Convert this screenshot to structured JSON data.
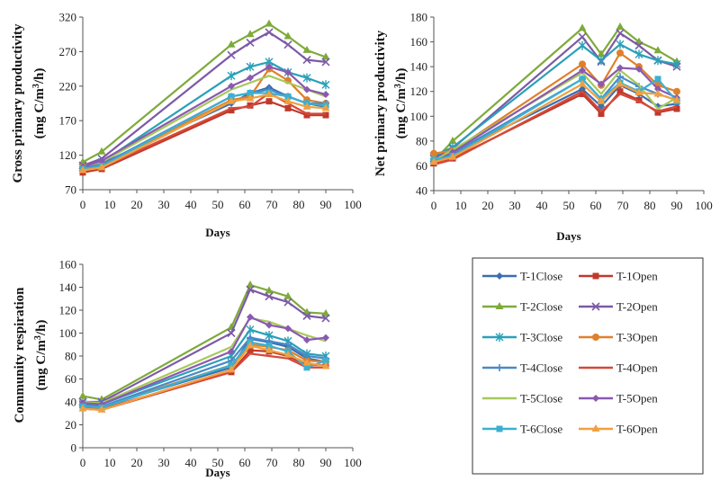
{
  "chart_data": [
    {
      "type": "line",
      "title": "",
      "xlabel": "Days",
      "ylabel": "Gross primary productivity (mg C/m3/h)",
      "ylabel_line1": "Gross primary productivity",
      "ylabel_line2": "(mg C/m",
      "ylabel_sup": "3",
      "ylabel_tail": "/h)",
      "xlim": [
        0,
        100
      ],
      "ylim": [
        70,
        320
      ],
      "xticks": [
        0,
        10,
        20,
        30,
        40,
        50,
        60,
        70,
        80,
        90,
        100
      ],
      "yticks": [
        70,
        120,
        170,
        220,
        270,
        320
      ],
      "x": [
        0,
        7,
        55,
        62,
        69,
        76,
        83,
        90
      ],
      "series": [
        {
          "name": "T-1Close",
          "values": [
            100,
            108,
            195,
            210,
            218,
            205,
            195,
            190
          ]
        },
        {
          "name": "T-1Open",
          "values": [
            95,
            100,
            185,
            192,
            198,
            188,
            178,
            178
          ]
        },
        {
          "name": "T-2Close",
          "values": [
            110,
            125,
            280,
            295,
            310,
            292,
            272,
            262
          ]
        },
        {
          "name": "T-2Open",
          "values": [
            105,
            115,
            265,
            283,
            298,
            280,
            258,
            255
          ]
        },
        {
          "name": "T-3Close",
          "values": [
            102,
            110,
            235,
            248,
            255,
            240,
            232,
            222
          ]
        },
        {
          "name": "T-3Open",
          "values": [
            103,
            106,
            200,
            205,
            245,
            228,
            200,
            195
          ]
        },
        {
          "name": "T-4Close",
          "values": [
            102,
            106,
            205,
            210,
            215,
            205,
            195,
            195
          ]
        },
        {
          "name": "T-4Open",
          "values": [
            98,
            102,
            188,
            190,
            210,
            195,
            180,
            180
          ]
        },
        {
          "name": "T-5Close",
          "values": [
            104,
            110,
            215,
            225,
            235,
            225,
            215,
            205
          ]
        },
        {
          "name": "T-5Open",
          "values": [
            103,
            112,
            220,
            232,
            248,
            240,
            215,
            208
          ]
        },
        {
          "name": "T-6Close",
          "values": [
            100,
            104,
            205,
            210,
            210,
            205,
            195,
            192
          ]
        },
        {
          "name": "T-6Open",
          "values": [
            98,
            102,
            198,
            202,
            208,
            198,
            190,
            188
          ]
        }
      ]
    },
    {
      "type": "line",
      "title": "",
      "xlabel": "Days",
      "ylabel": "Net primary productivity (mg C/m3/h)",
      "ylabel_line1": "Net primary productivity",
      "ylabel_line2": "(mg C/m",
      "ylabel_sup": "3",
      "ylabel_tail": "/h)",
      "xlim": [
        0,
        100
      ],
      "ylim": [
        40,
        180
      ],
      "xticks": [
        0,
        10,
        20,
        30,
        40,
        50,
        60,
        70,
        80,
        90,
        100
      ],
      "yticks": [
        40,
        60,
        80,
        100,
        120,
        140,
        160,
        180
      ],
      "x": [
        0,
        7,
        55,
        62,
        69,
        76,
        83,
        90
      ],
      "series": [
        {
          "name": "T-1Close",
          "values": [
            65,
            70,
            122,
            108,
            125,
            118,
            108,
            110
          ]
        },
        {
          "name": "T-1Open",
          "values": [
            62,
            66,
            118,
            102,
            120,
            113,
            103,
            106
          ]
        },
        {
          "name": "T-2Close",
          "values": [
            64,
            80,
            171,
            150,
            172,
            160,
            153,
            144
          ]
        },
        {
          "name": "T-2Open",
          "values": [
            66,
            74,
            164,
            144,
            167,
            157,
            145,
            140
          ]
        },
        {
          "name": "T-3Close",
          "values": [
            68,
            75,
            157,
            145,
            158,
            150,
            145,
            142
          ]
        },
        {
          "name": "T-3Open",
          "values": [
            70,
            72,
            142,
            125,
            151,
            140,
            125,
            120
          ]
        },
        {
          "name": "T-4Close",
          "values": [
            64,
            70,
            130,
            114,
            132,
            124,
            118,
            113
          ]
        },
        {
          "name": "T-4Open",
          "values": [
            61,
            65,
            120,
            104,
            118,
            112,
            104,
            108
          ]
        },
        {
          "name": "T-5Close",
          "values": [
            64,
            73,
            135,
            118,
            137,
            125,
            106,
            115
          ]
        },
        {
          "name": "T-5Open",
          "values": [
            63,
            71,
            137,
            126,
            139,
            138,
            122,
            115
          ]
        },
        {
          "name": "T-6Close",
          "values": [
            65,
            68,
            130,
            114,
            127,
            120,
            130,
            112
          ]
        },
        {
          "name": "T-6Open",
          "values": [
            63,
            67,
            126,
            112,
            126,
            119,
            118,
            113
          ]
        }
      ]
    },
    {
      "type": "line",
      "title": "",
      "xlabel": "Days",
      "ylabel": "Community respiration (mg C/m3/h)",
      "ylabel_line1": "Community respiration",
      "ylabel_line2": "(mg C/m",
      "ylabel_sup": "3",
      "ylabel_tail": "/h)",
      "xlim": [
        0,
        100
      ],
      "ylim": [
        0,
        160
      ],
      "xticks": [
        0,
        10,
        20,
        30,
        40,
        50,
        60,
        70,
        80,
        90,
        100
      ],
      "yticks": [
        0,
        20,
        40,
        60,
        80,
        100,
        120,
        140,
        160
      ],
      "x": [
        0,
        7,
        55,
        62,
        69,
        76,
        83,
        90
      ],
      "series": [
        {
          "name": "T-1Close",
          "values": [
            38,
            36,
            70,
            95,
            92,
            88,
            78,
            75
          ]
        },
        {
          "name": "T-1Open",
          "values": [
            35,
            34,
            66,
            85,
            84,
            80,
            72,
            72
          ]
        },
        {
          "name": "T-2Close",
          "values": [
            45,
            42,
            105,
            142,
            137,
            132,
            118,
            117
          ]
        },
        {
          "name": "T-2Open",
          "values": [
            40,
            40,
            100,
            138,
            132,
            127,
            115,
            113
          ]
        },
        {
          "name": "T-3Close",
          "values": [
            38,
            38,
            80,
            103,
            98,
            93,
            82,
            80
          ]
        },
        {
          "name": "T-3Open",
          "values": [
            36,
            36,
            72,
            90,
            88,
            85,
            76,
            75
          ]
        },
        {
          "name": "T-4Close",
          "values": [
            37,
            36,
            76,
            96,
            93,
            90,
            80,
            78
          ]
        },
        {
          "name": "T-4Open",
          "values": [
            34,
            33,
            66,
            82,
            80,
            78,
            70,
            70
          ]
        },
        {
          "name": "T-5Close",
          "values": [
            40,
            39,
            88,
            113,
            110,
            104,
            98,
            93
          ]
        },
        {
          "name": "T-5Open",
          "values": [
            39,
            38,
            84,
            114,
            107,
            104,
            94,
            96
          ]
        },
        {
          "name": "T-6Close",
          "values": [
            36,
            35,
            72,
            92,
            89,
            84,
            70,
            76
          ]
        },
        {
          "name": "T-6Open",
          "values": [
            34,
            33,
            68,
            89,
            85,
            81,
            74,
            71
          ]
        }
      ]
    }
  ],
  "legend": [
    {
      "name": "T-1Close",
      "color": "#3b6eb0",
      "marker": "diamond"
    },
    {
      "name": "T-1Open",
      "color": "#c0392b",
      "marker": "square"
    },
    {
      "name": "T-2Close",
      "color": "#7eaa3a",
      "marker": "triangle"
    },
    {
      "name": "T-2Open",
      "color": "#7b5aa6",
      "marker": "x"
    },
    {
      "name": "T-3Close",
      "color": "#2aa0b8",
      "marker": "star"
    },
    {
      "name": "T-3Open",
      "color": "#e0802a",
      "marker": "circle"
    },
    {
      "name": "T-4Close",
      "color": "#4a89c8",
      "marker": "plus"
    },
    {
      "name": "T-4Open",
      "color": "#d44a3a",
      "marker": "none"
    },
    {
      "name": "T-5Close",
      "color": "#a6c95a",
      "marker": "none"
    },
    {
      "name": "T-5Open",
      "color": "#8a5ab0",
      "marker": "diamond"
    },
    {
      "name": "T-6Close",
      "color": "#3cb0d0",
      "marker": "square"
    },
    {
      "name": "T-6Open",
      "color": "#f0a040",
      "marker": "triangle"
    }
  ]
}
